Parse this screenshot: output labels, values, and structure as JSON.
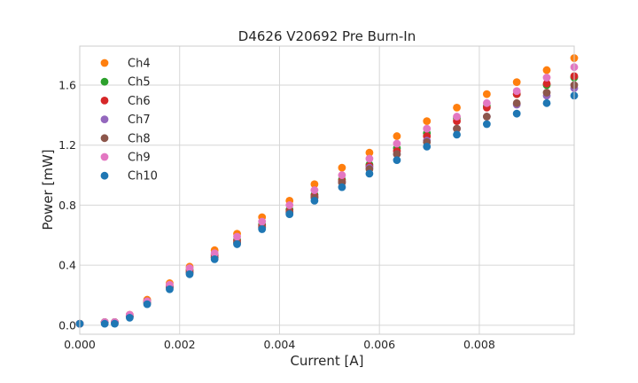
{
  "chart_data": {
    "type": "scatter",
    "title": "D4626 V20692 Pre Burn-In",
    "xlabel": "Current [A]",
    "ylabel": "Power [mW]",
    "xlim": [
      0,
      0.0099
    ],
    "ylim": [
      -0.06,
      1.86
    ],
    "xticks": [
      0,
      0.002,
      0.004,
      0.006,
      0.008
    ],
    "xtick_labels": [
      "0.000",
      "0.002",
      "0.004",
      "0.006",
      "0.008"
    ],
    "yticks": [
      0,
      0.4,
      0.8,
      1.2,
      1.6
    ],
    "ytick_labels": [
      "0.0",
      "0.4",
      "0.8",
      "1.2",
      "1.6"
    ],
    "grid": true,
    "legend_position": "top-left",
    "x": [
      0,
      0.0005,
      0.0007,
      0.001,
      0.00135,
      0.0018,
      0.0022,
      0.0027,
      0.00315,
      0.00365,
      0.0042,
      0.0047,
      0.00525,
      0.0058,
      0.00635,
      0.00695,
      0.00755,
      0.00815,
      0.00875,
      0.00935,
      0.0099
    ],
    "series": [
      {
        "name": "Ch4",
        "color": "#ff7f0e",
        "values": [
          0.01,
          0.02,
          0.02,
          0.07,
          0.17,
          0.28,
          0.39,
          0.5,
          0.61,
          0.72,
          0.83,
          0.94,
          1.05,
          1.15,
          1.26,
          1.36,
          1.45,
          1.54,
          1.62,
          1.7,
          1.78
        ]
      },
      {
        "name": "Ch5",
        "color": "#2ca02c",
        "values": [
          0.01,
          0.02,
          0.02,
          0.06,
          0.16,
          0.26,
          0.37,
          0.47,
          0.57,
          0.67,
          0.77,
          0.87,
          0.97,
          1.07,
          1.18,
          1.28,
          1.38,
          1.46,
          1.54,
          1.6,
          1.65
        ]
      },
      {
        "name": "Ch6",
        "color": "#d62728",
        "values": [
          0.01,
          0.02,
          0.02,
          0.06,
          0.16,
          0.26,
          0.36,
          0.46,
          0.56,
          0.66,
          0.76,
          0.86,
          0.96,
          1.06,
          1.16,
          1.26,
          1.36,
          1.45,
          1.54,
          1.61,
          1.66
        ]
      },
      {
        "name": "Ch7",
        "color": "#9467bd",
        "values": [
          0.01,
          0.02,
          0.02,
          0.06,
          0.15,
          0.25,
          0.35,
          0.45,
          0.55,
          0.65,
          0.75,
          0.85,
          0.95,
          1.05,
          1.14,
          1.23,
          1.31,
          1.39,
          1.47,
          1.53,
          1.58
        ]
      },
      {
        "name": "Ch8",
        "color": "#8c564b",
        "values": [
          0.01,
          0.02,
          0.02,
          0.06,
          0.15,
          0.25,
          0.35,
          0.45,
          0.55,
          0.65,
          0.75,
          0.85,
          0.95,
          1.04,
          1.14,
          1.22,
          1.31,
          1.39,
          1.48,
          1.55,
          1.6
        ]
      },
      {
        "name": "Ch9",
        "color": "#e377c2",
        "values": [
          0.01,
          0.02,
          0.02,
          0.07,
          0.16,
          0.27,
          0.38,
          0.48,
          0.59,
          0.69,
          0.8,
          0.9,
          1.0,
          1.11,
          1.21,
          1.31,
          1.39,
          1.48,
          1.56,
          1.65,
          1.72
        ]
      },
      {
        "name": "Ch10",
        "color": "#1f77b4",
        "values": [
          0.01,
          0.01,
          0.01,
          0.05,
          0.14,
          0.24,
          0.34,
          0.44,
          0.54,
          0.64,
          0.74,
          0.83,
          0.92,
          1.01,
          1.1,
          1.19,
          1.27,
          1.34,
          1.41,
          1.48,
          1.53
        ]
      }
    ]
  }
}
